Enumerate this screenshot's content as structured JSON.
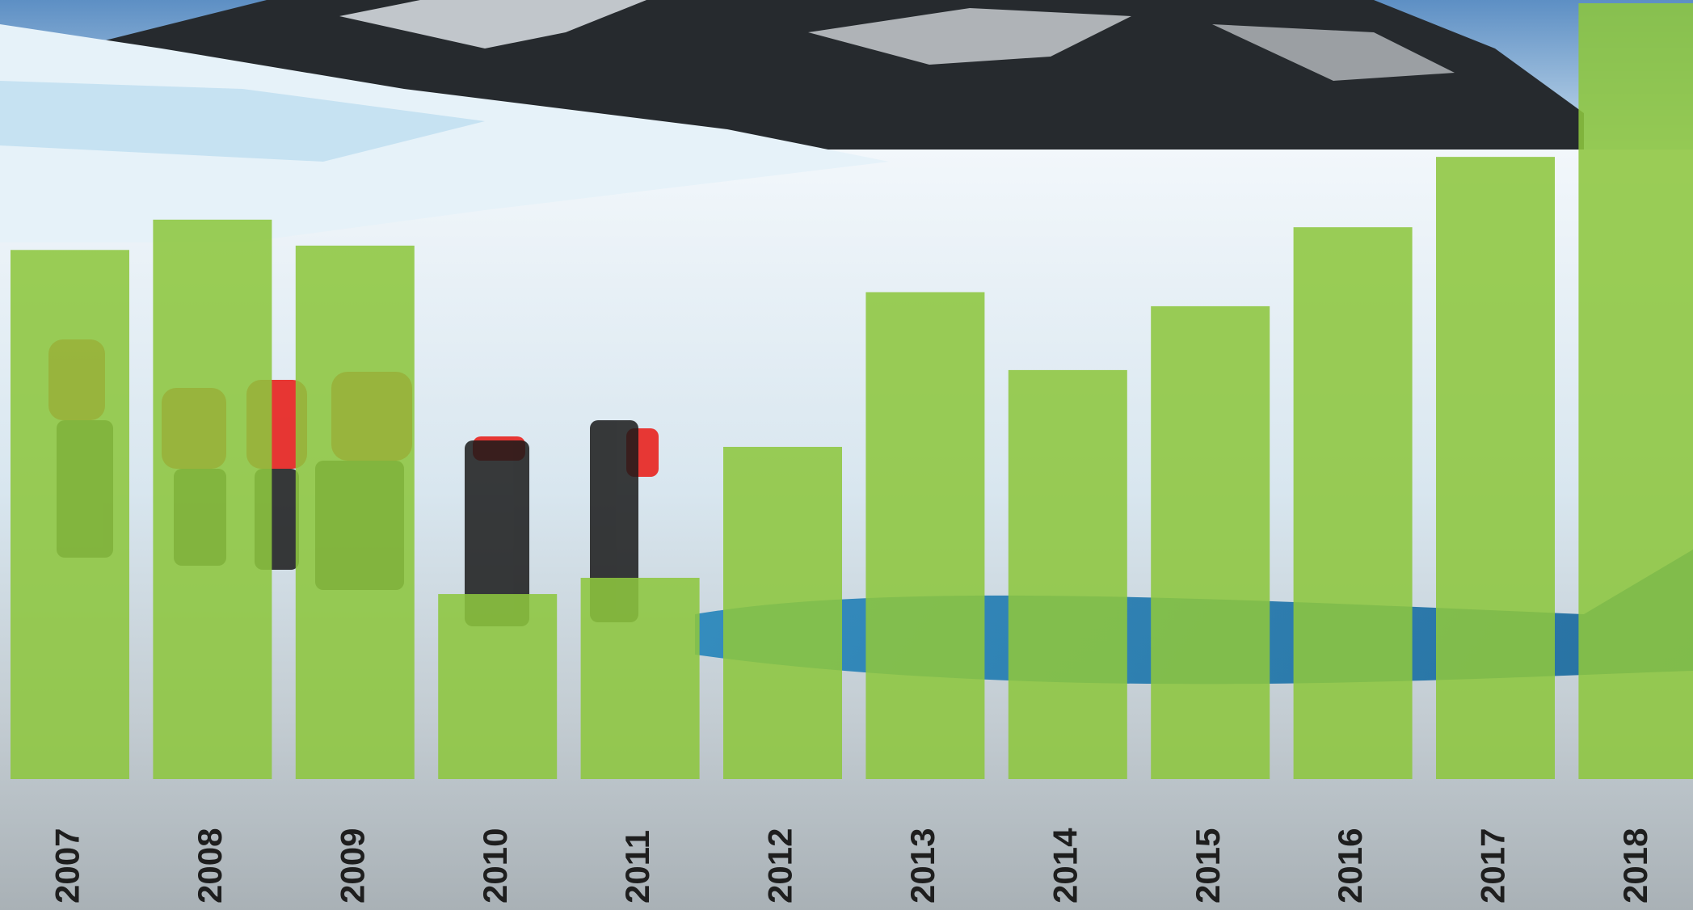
{
  "chart_data": {
    "type": "bar",
    "categories": [
      "2007",
      "2008",
      "2009",
      "2010",
      "2011",
      "2012",
      "2013",
      "2014",
      "2015",
      "2016",
      "2017",
      "2018"
    ],
    "values": [
      489,
      517,
      493,
      171,
      186,
      307,
      450,
      378,
      437,
      510,
      575,
      717
    ],
    "color": "#8dc63f",
    "ylim": [
      0,
      720
    ]
  }
}
